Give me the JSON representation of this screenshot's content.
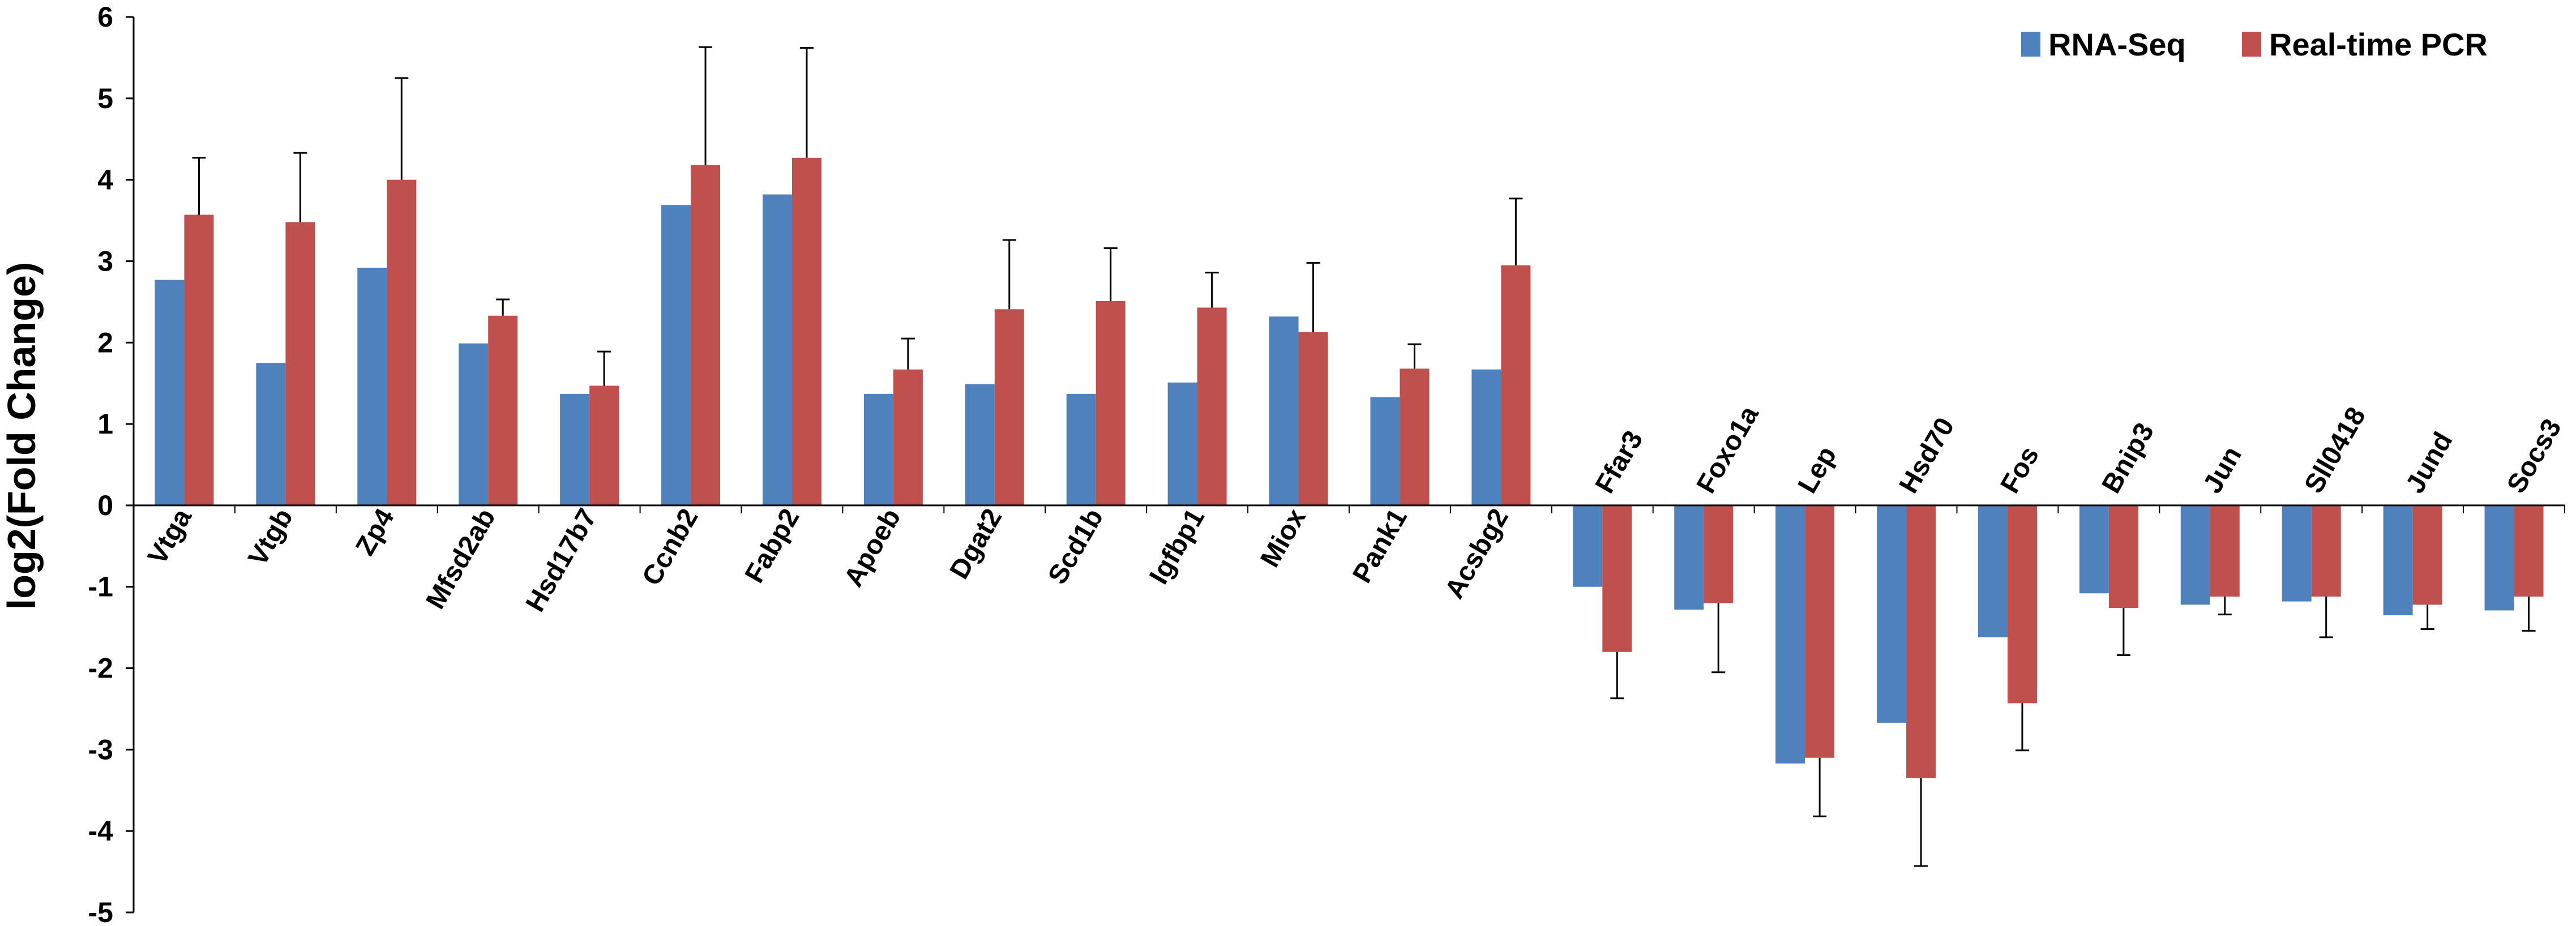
{
  "chart_data": {
    "type": "bar",
    "title": "",
    "xlabel": "",
    "ylabel": "log2(Fold Change)",
    "ylim": [
      -5,
      6
    ],
    "yticks": [
      6,
      5,
      4,
      3,
      2,
      1,
      0,
      -1,
      -2,
      -3,
      -4,
      -5
    ],
    "ytick_labels": [
      "6",
      "5",
      "4",
      "3",
      "2",
      "1",
      "0",
      "-1",
      "-2",
      "-3",
      "-4",
      "-5"
    ],
    "grid": false,
    "legend_position": "top-right",
    "categories": [
      "Vtga",
      "Vtgb",
      "Zp4",
      "Mfsd2ab",
      "Hsd17b7",
      "Ccnb2",
      "Fabp2",
      "Apoeb",
      "Dgat2",
      "Scd1b",
      "Igfbp1",
      "Miox",
      "Pank1",
      "Acsbg2",
      "Ffar3",
      "Foxo1a",
      "Lep",
      "Hsd70",
      "Fos",
      "Bnip3",
      "Jun",
      "Sll0418",
      "Jund",
      "Socs3"
    ],
    "series": [
      {
        "name": "RNA-Seq",
        "color": "#4f81bd",
        "values": [
          2.77,
          1.75,
          2.92,
          1.99,
          1.37,
          3.69,
          3.82,
          1.37,
          1.49,
          1.37,
          1.51,
          2.32,
          1.33,
          1.67,
          -1.0,
          -1.28,
          -3.17,
          -2.67,
          -1.62,
          -1.08,
          -1.22,
          -1.18,
          -1.35,
          -1.29
        ],
        "errors": null
      },
      {
        "name": "Real-time PCR",
        "color": "#c0504d",
        "values": [
          3.57,
          3.48,
          4.0,
          2.33,
          1.47,
          4.18,
          4.27,
          1.67,
          2.41,
          2.51,
          2.43,
          2.13,
          1.68,
          2.95,
          -1.8,
          -1.2,
          -3.1,
          -3.35,
          -2.43,
          -1.26,
          -1.12,
          -1.12,
          -1.22,
          -1.12
        ],
        "errors": [
          0.7,
          0.85,
          1.25,
          0.2,
          0.42,
          1.45,
          1.35,
          0.38,
          0.85,
          0.65,
          0.43,
          0.85,
          0.3,
          0.82,
          0.57,
          0.85,
          0.72,
          1.08,
          0.58,
          0.58,
          0.22,
          0.5,
          0.3,
          0.42
        ]
      }
    ]
  }
}
